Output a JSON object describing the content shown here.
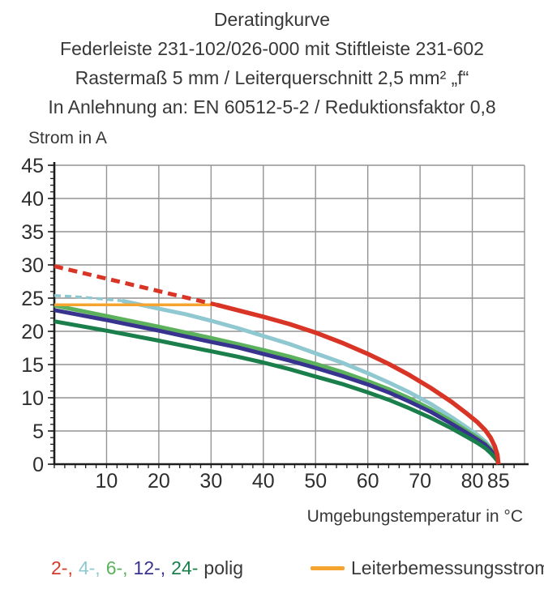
{
  "header": {
    "lines": [
      "Deratingkurve",
      "Federleiste 231-102/026-000 mit Stiftleiste 231-602",
      "Rastermaß 5 mm / Leiterquerschnitt 2,5 mm² „f“",
      "In Anlehnung an: EN 60512-5-2 / Reduktionsfaktor 0,8"
    ]
  },
  "colors": {
    "grid": "#949494",
    "axis": "#1d1d1d",
    "tick_text": "#2e2e2e",
    "body_text": "#383838"
  },
  "legend": {
    "poles": {
      "items": [
        {
          "label": "2-,",
          "color": "#d23b2a"
        },
        {
          "label": "4-,",
          "color": "#8fc8d0"
        },
        {
          "label": "6-,",
          "color": "#5cb25c"
        },
        {
          "label": "12-,",
          "color": "#37338e"
        },
        {
          "label": "24-",
          "color": "#1a7f4b"
        }
      ],
      "suffix": "polig"
    },
    "rated_current": {
      "label": "Leiterbemessungsstrom",
      "swatch_color": "#f4a42f"
    }
  },
  "chart_data": {
    "type": "line",
    "title": "Deratingkurve",
    "xlabel": "Umgebungstemperatur in °C",
    "ylabel": "Strom in A",
    "xlim": [
      0,
      90
    ],
    "ylim": [
      0,
      45
    ],
    "grid": true,
    "x_tick_labels": [
      10,
      20,
      30,
      40,
      50,
      60,
      70,
      80,
      85
    ],
    "x_gridlines": [
      10,
      20,
      30,
      40,
      50,
      60,
      70,
      80,
      90
    ],
    "y_ticks": [
      0,
      5,
      10,
      15,
      20,
      25,
      30,
      35,
      40,
      45
    ],
    "x_minor_step": 2,
    "y_minor_step": 1,
    "series": [
      {
        "name": "4-polig",
        "color": "#8fc8d0",
        "width": 5,
        "dash": "8 5",
        "dash_width": 3.5,
        "dashed": [
          [
            0,
            25.4
          ],
          [
            6,
            25.1
          ],
          [
            13,
            24.6
          ]
        ],
        "points": [
          [
            13,
            24.6
          ],
          [
            20,
            23.4
          ],
          [
            25,
            22.6
          ],
          [
            30,
            21.6
          ],
          [
            35,
            20.5
          ],
          [
            40,
            19.3
          ],
          [
            45,
            18.1
          ],
          [
            50,
            16.7
          ],
          [
            55,
            15.3
          ],
          [
            60,
            13.7
          ],
          [
            64,
            12.3
          ],
          [
            68,
            10.8
          ],
          [
            72,
            9.1
          ],
          [
            76,
            7.1
          ],
          [
            79,
            5.5
          ],
          [
            81,
            4.4
          ],
          [
            82.5,
            3.4
          ],
          [
            83.5,
            2.5
          ],
          [
            84.3,
            1.6
          ],
          [
            84.8,
            0.8
          ],
          [
            85,
            0
          ]
        ]
      },
      {
        "name": "6-polig",
        "color": "#5cb25c",
        "width": 5,
        "points": [
          [
            0,
            23.9
          ],
          [
            10,
            22.3
          ],
          [
            20,
            20.7
          ],
          [
            30,
            19.0
          ],
          [
            35,
            18.1
          ],
          [
            40,
            17.2
          ],
          [
            45,
            16.2
          ],
          [
            50,
            15.1
          ],
          [
            55,
            13.9
          ],
          [
            60,
            12.5
          ],
          [
            64,
            11.3
          ],
          [
            68,
            9.9
          ],
          [
            72,
            8.3
          ],
          [
            76,
            6.5
          ],
          [
            79,
            5.0
          ],
          [
            81,
            4.0
          ],
          [
            82.5,
            3.1
          ],
          [
            83.5,
            2.3
          ],
          [
            84.3,
            1.4
          ],
          [
            84.8,
            0.7
          ],
          [
            85,
            0
          ]
        ]
      },
      {
        "name": "12-polig",
        "color": "#37338e",
        "width": 5,
        "points": [
          [
            0,
            23.2
          ],
          [
            10,
            21.7
          ],
          [
            20,
            20.1
          ],
          [
            30,
            18.4
          ],
          [
            35,
            17.6
          ],
          [
            40,
            16.6
          ],
          [
            45,
            15.6
          ],
          [
            50,
            14.5
          ],
          [
            55,
            13.3
          ],
          [
            60,
            12.0
          ],
          [
            64,
            10.8
          ],
          [
            68,
            9.4
          ],
          [
            72,
            7.9
          ],
          [
            76,
            6.1
          ],
          [
            79,
            4.7
          ],
          [
            81,
            3.7
          ],
          [
            82.5,
            2.9
          ],
          [
            83.5,
            2.1
          ],
          [
            84.3,
            1.3
          ],
          [
            84.8,
            0.6
          ],
          [
            85,
            0
          ]
        ]
      },
      {
        "name": "24-polig",
        "color": "#1a7f4b",
        "width": 5,
        "points": [
          [
            0,
            21.5
          ],
          [
            10,
            20.1
          ],
          [
            20,
            18.6
          ],
          [
            30,
            17.0
          ],
          [
            35,
            16.2
          ],
          [
            40,
            15.3
          ],
          [
            45,
            14.3
          ],
          [
            50,
            13.2
          ],
          [
            55,
            12.1
          ],
          [
            60,
            10.8
          ],
          [
            64,
            9.7
          ],
          [
            68,
            8.4
          ],
          [
            72,
            7.0
          ],
          [
            76,
            5.4
          ],
          [
            79,
            4.1
          ],
          [
            81,
            3.2
          ],
          [
            82.5,
            2.4
          ],
          [
            83.5,
            1.7
          ],
          [
            84.3,
            1.0
          ],
          [
            84.8,
            0.5
          ],
          [
            85,
            0
          ]
        ]
      },
      {
        "name": "Leiterbemessungsstrom",
        "color": "#f4a42f",
        "width": 3.5,
        "points": [
          [
            0,
            24
          ],
          [
            31.5,
            24
          ]
        ]
      },
      {
        "name": "2-polig",
        "color": "#d93526",
        "width": 5.5,
        "dash": "11 7",
        "dash_width": 5,
        "dashed": [
          [
            0,
            29.8
          ],
          [
            8,
            28.3
          ],
          [
            16,
            26.8
          ],
          [
            24,
            25.3
          ],
          [
            31,
            24
          ]
        ],
        "points": [
          [
            31,
            24
          ],
          [
            36,
            23.0
          ],
          [
            40,
            22.2
          ],
          [
            45,
            21.1
          ],
          [
            50,
            19.8
          ],
          [
            55,
            18.3
          ],
          [
            60,
            16.6
          ],
          [
            64,
            15.1
          ],
          [
            68,
            13.4
          ],
          [
            72,
            11.5
          ],
          [
            76,
            9.4
          ],
          [
            79,
            7.6
          ],
          [
            81,
            6.3
          ],
          [
            82.5,
            5.1
          ],
          [
            83.5,
            4.0
          ],
          [
            84.3,
            2.7
          ],
          [
            84.8,
            1.4
          ],
          [
            85,
            0
          ]
        ]
      }
    ]
  }
}
